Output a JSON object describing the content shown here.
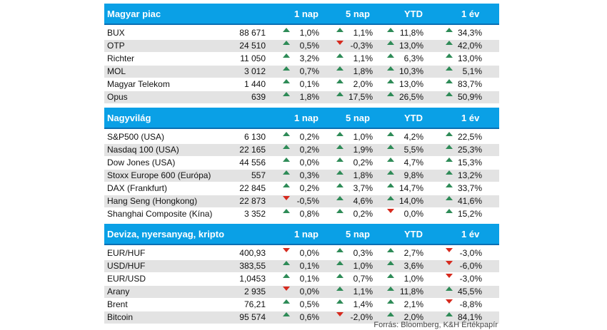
{
  "sections": [
    {
      "title": "Magyar piac",
      "columns": [
        "1 nap",
        "5 nap",
        "YTD",
        "1 év"
      ],
      "rows": [
        {
          "name": "BUX",
          "value": "88 671",
          "d1": "1,0%",
          "d5": "1,1%",
          "ytd": "11,8%",
          "y1": "34,3%",
          "dir": [
            "up",
            "up",
            "up",
            "up"
          ]
        },
        {
          "name": "OTP",
          "value": "24 510",
          "d1": "0,5%",
          "d5": "-0,3%",
          "ytd": "13,0%",
          "y1": "42,0%",
          "dir": [
            "up",
            "down",
            "up",
            "up"
          ]
        },
        {
          "name": "Richter",
          "value": "11 050",
          "d1": "3,2%",
          "d5": "1,1%",
          "ytd": "6,3%",
          "y1": "13,0%",
          "dir": [
            "up",
            "up",
            "up",
            "up"
          ]
        },
        {
          "name": "MOL",
          "value": "3 012",
          "d1": "0,7%",
          "d5": "1,8%",
          "ytd": "10,3%",
          "y1": "5,1%",
          "dir": [
            "up",
            "up",
            "up",
            "up"
          ]
        },
        {
          "name": "Magyar Telekom",
          "value": "1 440",
          "d1": "0,1%",
          "d5": "2,0%",
          "ytd": "13,0%",
          "y1": "83,7%",
          "dir": [
            "up",
            "up",
            "up",
            "up"
          ]
        },
        {
          "name": "Opus",
          "value": "639",
          "d1": "1,8%",
          "d5": "17,5%",
          "ytd": "26,5%",
          "y1": "50,9%",
          "dir": [
            "up",
            "up",
            "up",
            "up"
          ]
        }
      ]
    },
    {
      "title": "Nagyvilág",
      "columns": [
        "1 nap",
        "5 nap",
        "YTD",
        "1 év"
      ],
      "rows": [
        {
          "name": "S&P500 (USA)",
          "value": "6 130",
          "d1": "0,2%",
          "d5": "1,0%",
          "ytd": "4,2%",
          "y1": "22,5%",
          "dir": [
            "up",
            "up",
            "up",
            "up"
          ]
        },
        {
          "name": "Nasdaq 100 (USA)",
          "value": "22 165",
          "d1": "0,2%",
          "d5": "1,9%",
          "ytd": "5,5%",
          "y1": "25,3%",
          "dir": [
            "up",
            "up",
            "up",
            "up"
          ]
        },
        {
          "name": "Dow Jones (USA)",
          "value": "44 556",
          "d1": "0,0%",
          "d5": "0,2%",
          "ytd": "4,7%",
          "y1": "15,3%",
          "dir": [
            "up",
            "up",
            "up",
            "up"
          ]
        },
        {
          "name": "Stoxx Europe 600 (Európa)",
          "value": "557",
          "d1": "0,3%",
          "d5": "1,8%",
          "ytd": "9,8%",
          "y1": "13,2%",
          "dir": [
            "up",
            "up",
            "up",
            "up"
          ]
        },
        {
          "name": "DAX (Frankfurt)",
          "value": "22 845",
          "d1": "0,2%",
          "d5": "3,7%",
          "ytd": "14,7%",
          "y1": "33,7%",
          "dir": [
            "up",
            "up",
            "up",
            "up"
          ]
        },
        {
          "name": "Hang Seng (Hongkong)",
          "value": "22 873",
          "d1": "-0,5%",
          "d5": "4,6%",
          "ytd": "14,0%",
          "y1": "41,6%",
          "dir": [
            "down",
            "up",
            "up",
            "up"
          ]
        },
        {
          "name": "Shanghai Composite (Kína)",
          "value": "3 352",
          "d1": "0,8%",
          "d5": "0,2%",
          "ytd": "0,0%",
          "y1": "15,2%",
          "dir": [
            "up",
            "up",
            "down",
            "up"
          ]
        }
      ]
    },
    {
      "title": "Deviza, nyersanyag, kripto",
      "columns": [
        "1 nap",
        "5 nap",
        "YTD",
        "1 év"
      ],
      "rows": [
        {
          "name": "EUR/HUF",
          "value": "400,93",
          "d1": "0,0%",
          "d5": "0,3%",
          "ytd": "2,7%",
          "y1": "-3,0%",
          "dir": [
            "down",
            "up",
            "up",
            "down"
          ]
        },
        {
          "name": "USD/HUF",
          "value": "383,55",
          "d1": "0,1%",
          "d5": "1,0%",
          "ytd": "3,6%",
          "y1": "-6,0%",
          "dir": [
            "up",
            "up",
            "up",
            "down"
          ]
        },
        {
          "name": "EUR/USD",
          "value": "1,0453",
          "d1": "0,1%",
          "d5": "0,7%",
          "ytd": "1,0%",
          "y1": "-3,0%",
          "dir": [
            "up",
            "up",
            "up",
            "down"
          ]
        },
        {
          "name": "Arany",
          "value": "2 935",
          "d1": "0,0%",
          "d5": "1,1%",
          "ytd": "11,8%",
          "y1": "45,5%",
          "dir": [
            "down",
            "up",
            "up",
            "up"
          ]
        },
        {
          "name": "Brent",
          "value": "76,21",
          "d1": "0,5%",
          "d5": "1,4%",
          "ytd": "2,1%",
          "y1": "-8,8%",
          "dir": [
            "up",
            "up",
            "up",
            "down"
          ]
        },
        {
          "name": "Bitcoin",
          "value": "95 574",
          "d1": "0,6%",
          "d5": "-2,0%",
          "ytd": "2,0%",
          "y1": "84,1%",
          "dir": [
            "up",
            "down",
            "up",
            "up"
          ]
        }
      ]
    }
  ],
  "source": "Forrás: Bloomberg, K&H Értékpapír",
  "colors": {
    "header": "#0aa0e6",
    "up": "#2e8b57",
    "down": "#d62a1e",
    "shade": "#e3e3e3"
  }
}
